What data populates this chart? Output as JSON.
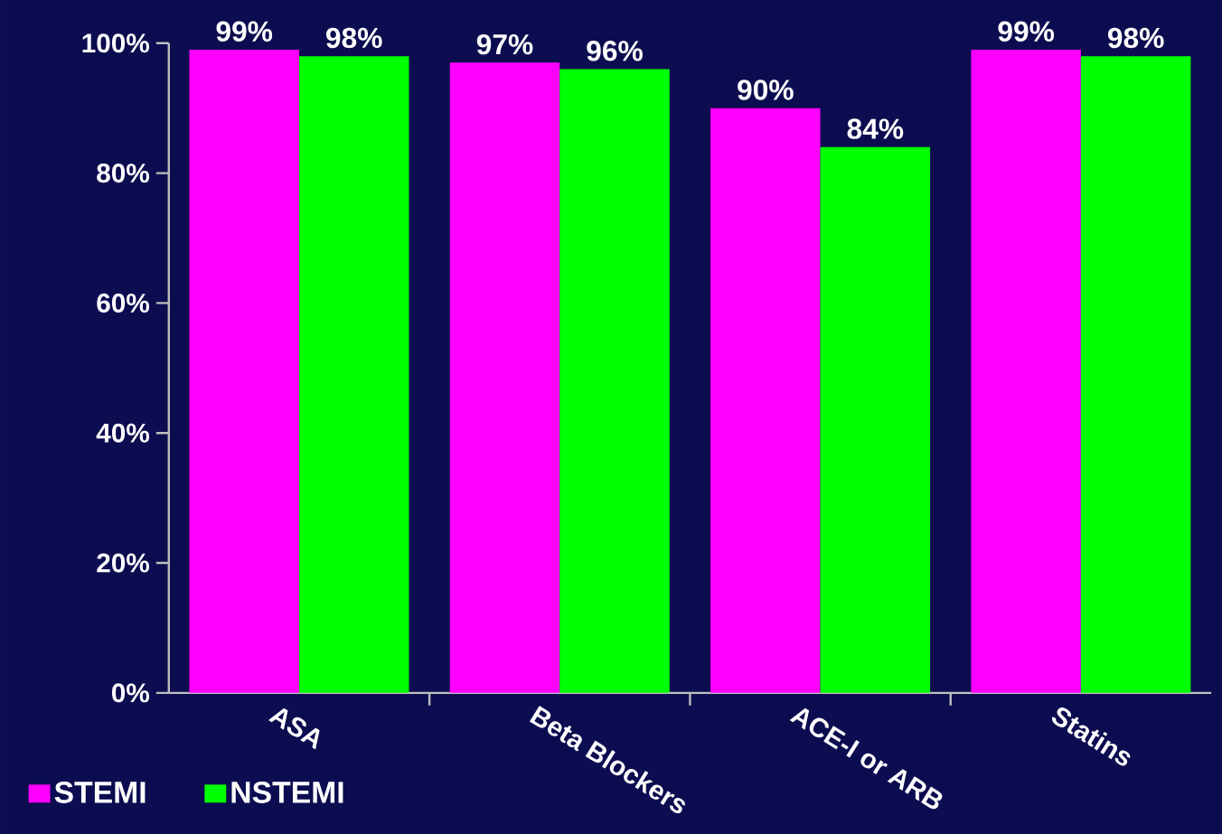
{
  "chart_data": {
    "type": "bar",
    "categories": [
      "ASA",
      "Beta Blockers",
      "ACE-I or ARB",
      "Statins"
    ],
    "series": [
      {
        "name": "STEMI",
        "color": "#ff00ff",
        "values": [
          99,
          97,
          90,
          99
        ],
        "value_labels": [
          "99%",
          "97%",
          "90%",
          "99%"
        ]
      },
      {
        "name": "NSTEMI",
        "color": "#00ff00",
        "values": [
          98,
          96,
          84,
          98
        ],
        "value_labels": [
          "98%",
          "96%",
          "84%",
          "98%"
        ]
      }
    ],
    "ylim": [
      0,
      100
    ],
    "yticks": [
      {
        "value": 0,
        "label": "0%"
      },
      {
        "value": 20,
        "label": "20%"
      },
      {
        "value": 40,
        "label": "40%"
      },
      {
        "value": 60,
        "label": "60%"
      },
      {
        "value": 80,
        "label": "80%"
      },
      {
        "value": 100,
        "label": "100%"
      }
    ],
    "grid": false,
    "legend": "bottom left"
  }
}
